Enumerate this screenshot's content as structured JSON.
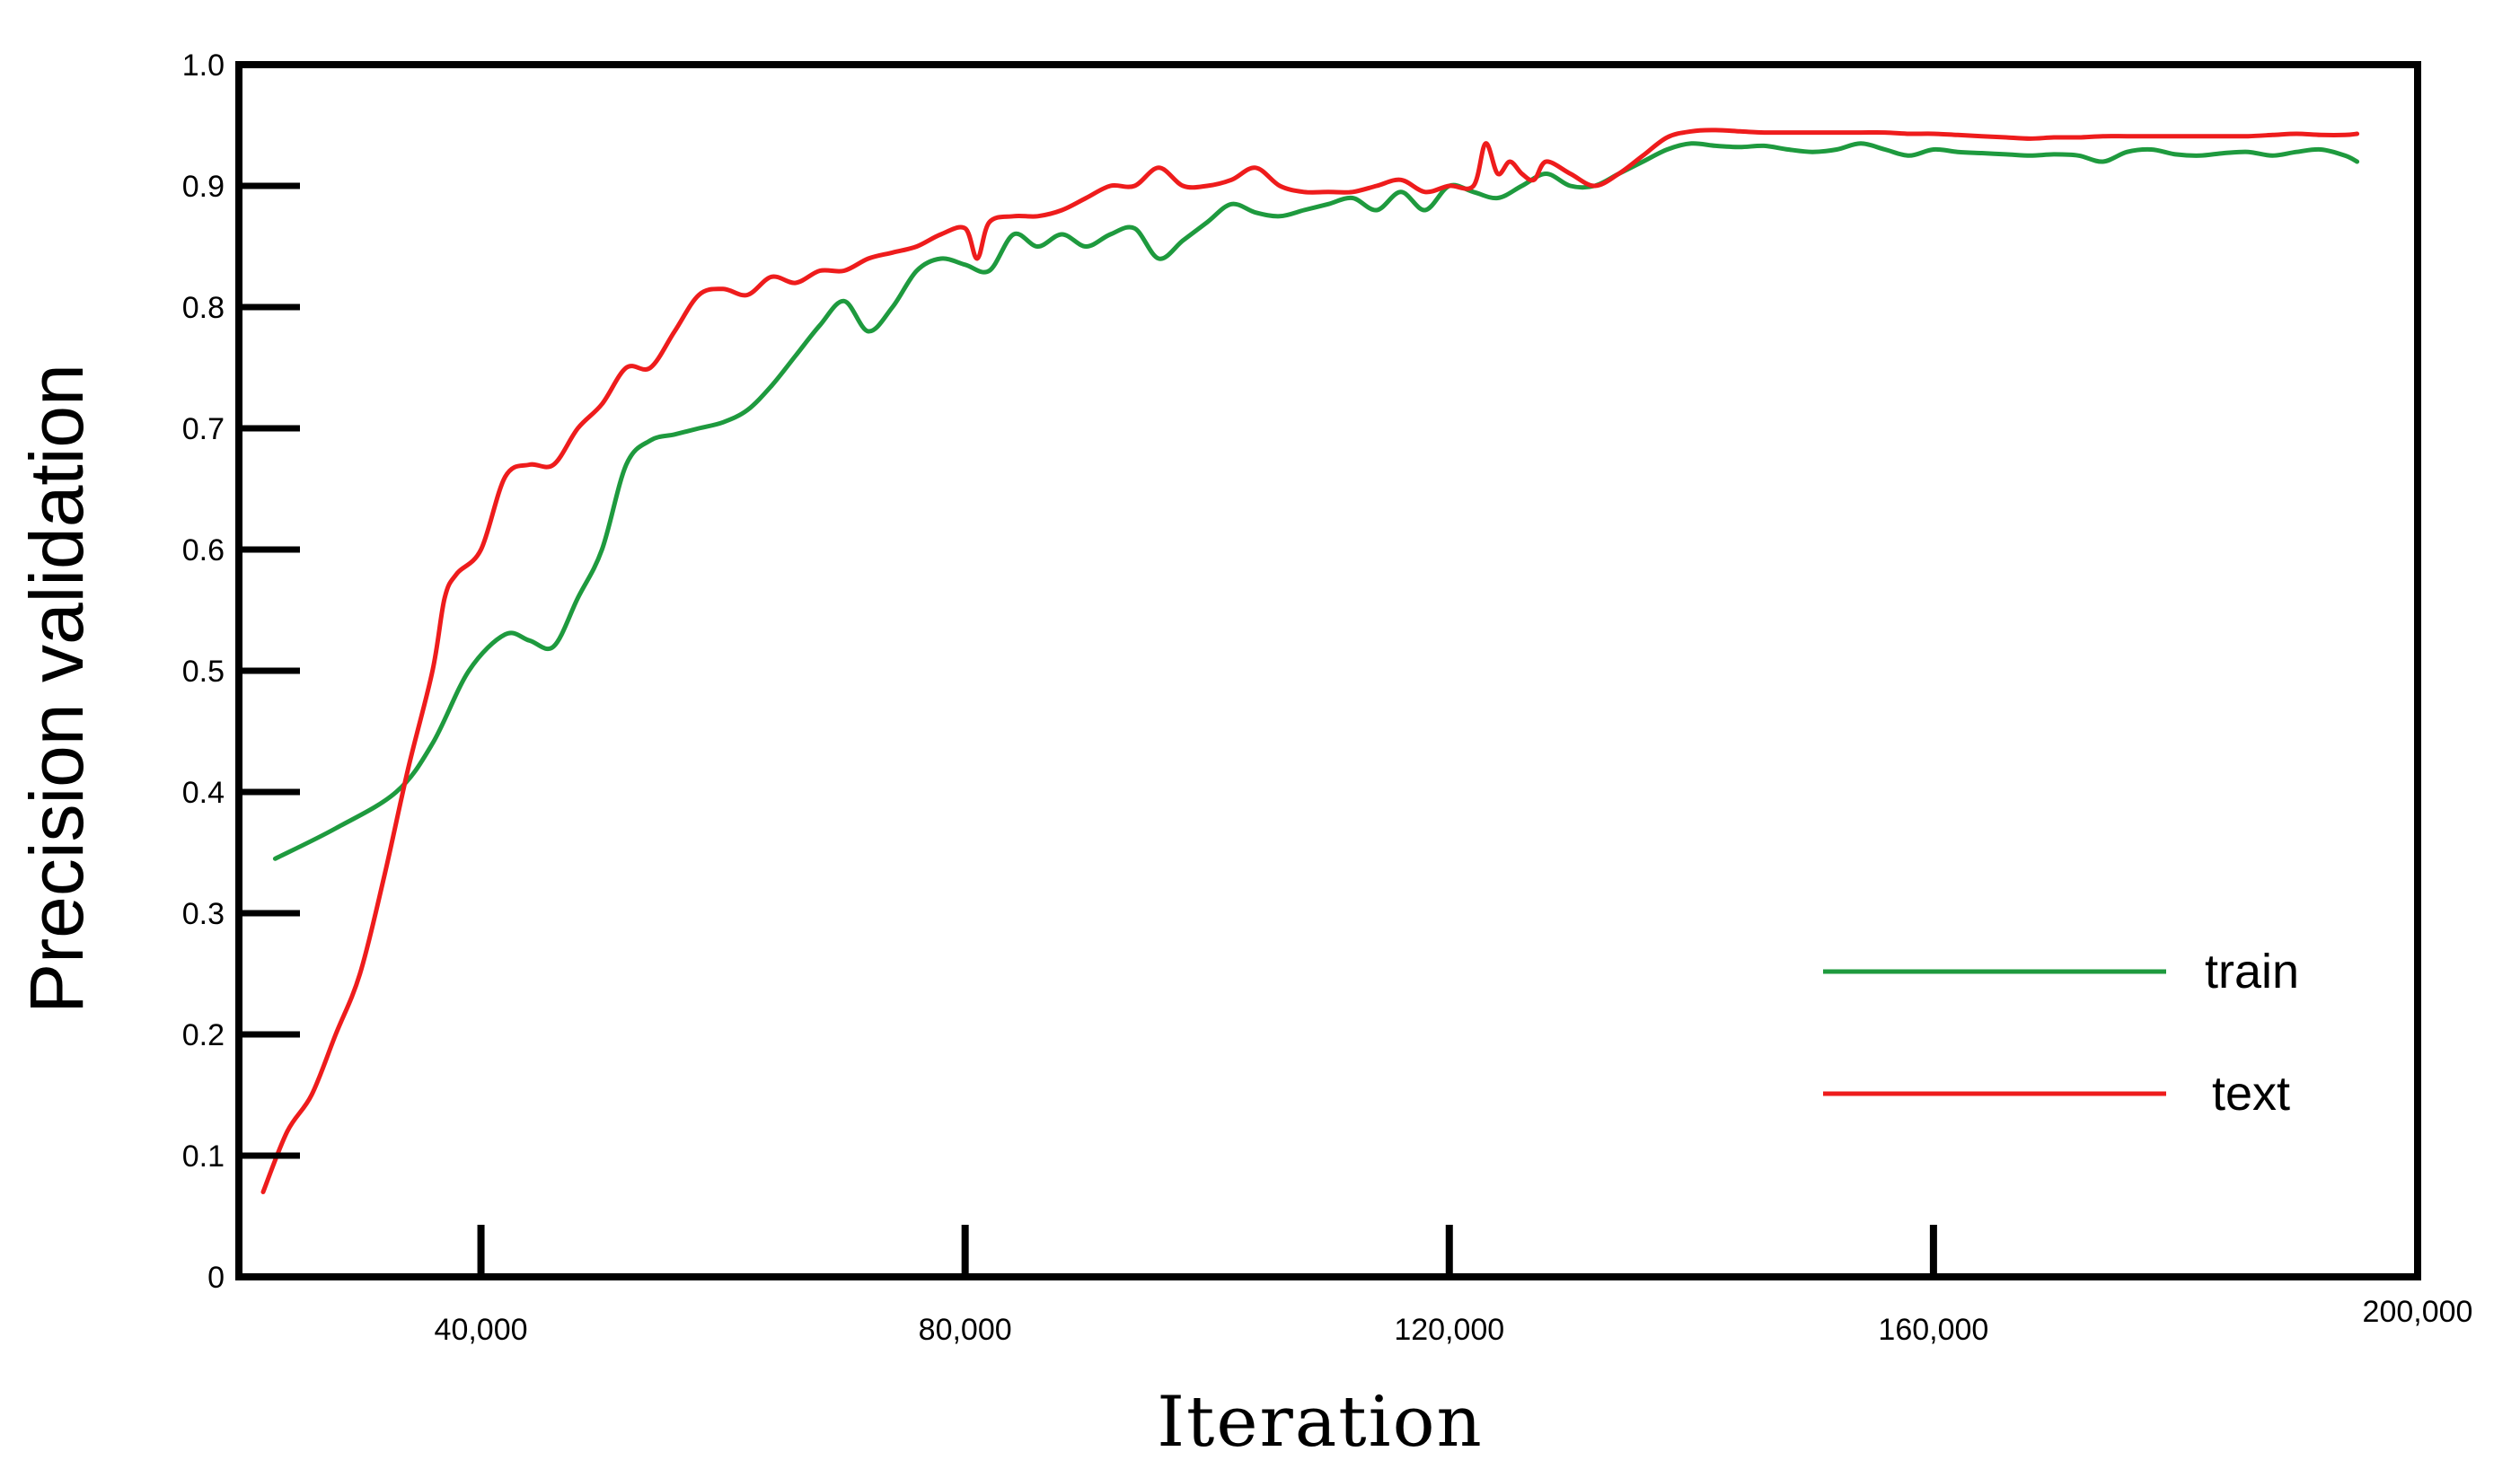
{
  "chart_data": {
    "type": "line",
    "title": "",
    "xlabel": "Iteration",
    "ylabel": "Precision validation",
    "xlim": [
      20000,
      200000
    ],
    "ylim": [
      0,
      1.0
    ],
    "grid": false,
    "legend_position": "bottom-right",
    "x_ticks": [
      40000,
      80000,
      120000,
      160000,
      200000
    ],
    "x_tick_labels": [
      "40,000",
      "80,000",
      "120,000",
      "160,000",
      "200,000"
    ],
    "y_ticks": [
      0,
      0.1,
      0.2,
      0.3,
      0.4,
      0.5,
      0.6,
      0.7,
      0.8,
      0.9,
      1.0
    ],
    "y_tick_labels": [
      "0",
      "0.1",
      "0.2",
      "0.3",
      "0.4",
      "0.5",
      "0.6",
      "0.7",
      "0.8",
      "0.9",
      "1.0"
    ],
    "series": [
      {
        "name": "train",
        "color": "#1e9a3e",
        "x": [
          23000,
          28000,
          33000,
          36000,
          39000,
          42000,
          44000,
          46000,
          48000,
          50000,
          52000,
          54000,
          56000,
          58000,
          60000,
          62000,
          64000,
          66000,
          68000,
          70000,
          72000,
          74000,
          76000,
          78000,
          80000,
          82000,
          84000,
          86000,
          88000,
          90000,
          92000,
          94000,
          96000,
          98000,
          100000,
          102000,
          104000,
          106000,
          108000,
          110000,
          112000,
          114000,
          116000,
          118000,
          120000,
          122000,
          124000,
          126000,
          128000,
          130000,
          132000,
          134000,
          136000,
          138000,
          140000,
          142000,
          144000,
          146000,
          148000,
          150000,
          152000,
          154000,
          156000,
          158000,
          160000,
          162000,
          164000,
          166000,
          168000,
          170000,
          172000,
          174000,
          176000,
          178000,
          180000,
          182000,
          184000,
          186000,
          188000,
          190000,
          192000,
          194000,
          195000
        ],
        "y": [
          0.345,
          0.37,
          0.4,
          0.44,
          0.5,
          0.53,
          0.525,
          0.52,
          0.56,
          0.6,
          0.67,
          0.69,
          0.695,
          0.7,
          0.705,
          0.715,
          0.735,
          0.76,
          0.785,
          0.805,
          0.78,
          0.8,
          0.83,
          0.84,
          0.835,
          0.83,
          0.86,
          0.85,
          0.86,
          0.85,
          0.86,
          0.865,
          0.84,
          0.855,
          0.87,
          0.885,
          0.878,
          0.875,
          0.88,
          0.885,
          0.89,
          0.88,
          0.895,
          0.88,
          0.9,
          0.895,
          0.89,
          0.9,
          0.91,
          0.9,
          0.9,
          0.91,
          0.92,
          0.93,
          0.935,
          0.933,
          0.932,
          0.933,
          0.93,
          0.928,
          0.93,
          0.935,
          0.93,
          0.925,
          0.93,
          0.928,
          0.927,
          0.926,
          0.925,
          0.926,
          0.925,
          0.92,
          0.928,
          0.93,
          0.926,
          0.925,
          0.927,
          0.928,
          0.925,
          0.928,
          0.93,
          0.925,
          0.92
        ]
      },
      {
        "name": "text",
        "color": "#ee1c1c",
        "x": [
          22000,
          24000,
          26000,
          28000,
          30000,
          32000,
          34000,
          36000,
          37000,
          38000,
          40000,
          42000,
          44000,
          46000,
          48000,
          50000,
          52000,
          54000,
          56000,
          58000,
          60000,
          62000,
          64000,
          66000,
          68000,
          70000,
          72000,
          74000,
          76000,
          78000,
          80000,
          81000,
          82000,
          84000,
          86000,
          88000,
          90000,
          92000,
          94000,
          96000,
          98000,
          100000,
          102000,
          104000,
          106000,
          108000,
          110000,
          112000,
          114000,
          116000,
          118000,
          120000,
          122000,
          123000,
          124000,
          125000,
          126000,
          127000,
          128000,
          130000,
          132000,
          134000,
          136000,
          138000,
          140000,
          142000,
          144000,
          146000,
          148000,
          150000,
          152000,
          154000,
          156000,
          158000,
          160000,
          162000,
          164000,
          166000,
          168000,
          170000,
          172000,
          174000,
          176000,
          178000,
          180000,
          182000,
          184000,
          186000,
          188000,
          190000,
          192000,
          194000,
          195000
        ],
        "y": [
          0.07,
          0.12,
          0.15,
          0.2,
          0.25,
          0.33,
          0.42,
          0.5,
          0.56,
          0.58,
          0.6,
          0.66,
          0.67,
          0.67,
          0.7,
          0.72,
          0.75,
          0.75,
          0.78,
          0.81,
          0.815,
          0.81,
          0.825,
          0.82,
          0.83,
          0.83,
          0.84,
          0.845,
          0.85,
          0.86,
          0.865,
          0.84,
          0.87,
          0.875,
          0.875,
          0.88,
          0.89,
          0.9,
          0.9,
          0.915,
          0.9,
          0.9,
          0.905,
          0.915,
          0.9,
          0.895,
          0.895,
          0.895,
          0.9,
          0.905,
          0.895,
          0.9,
          0.9,
          0.935,
          0.91,
          0.92,
          0.91,
          0.905,
          0.92,
          0.91,
          0.9,
          0.91,
          0.925,
          0.94,
          0.945,
          0.946,
          0.945,
          0.944,
          0.944,
          0.944,
          0.944,
          0.944,
          0.944,
          0.943,
          0.943,
          0.942,
          0.941,
          0.94,
          0.939,
          0.94,
          0.94,
          0.941,
          0.941,
          0.941,
          0.941,
          0.941,
          0.941,
          0.941,
          0.942,
          0.943,
          0.942,
          0.942,
          0.943
        ]
      }
    ]
  }
}
